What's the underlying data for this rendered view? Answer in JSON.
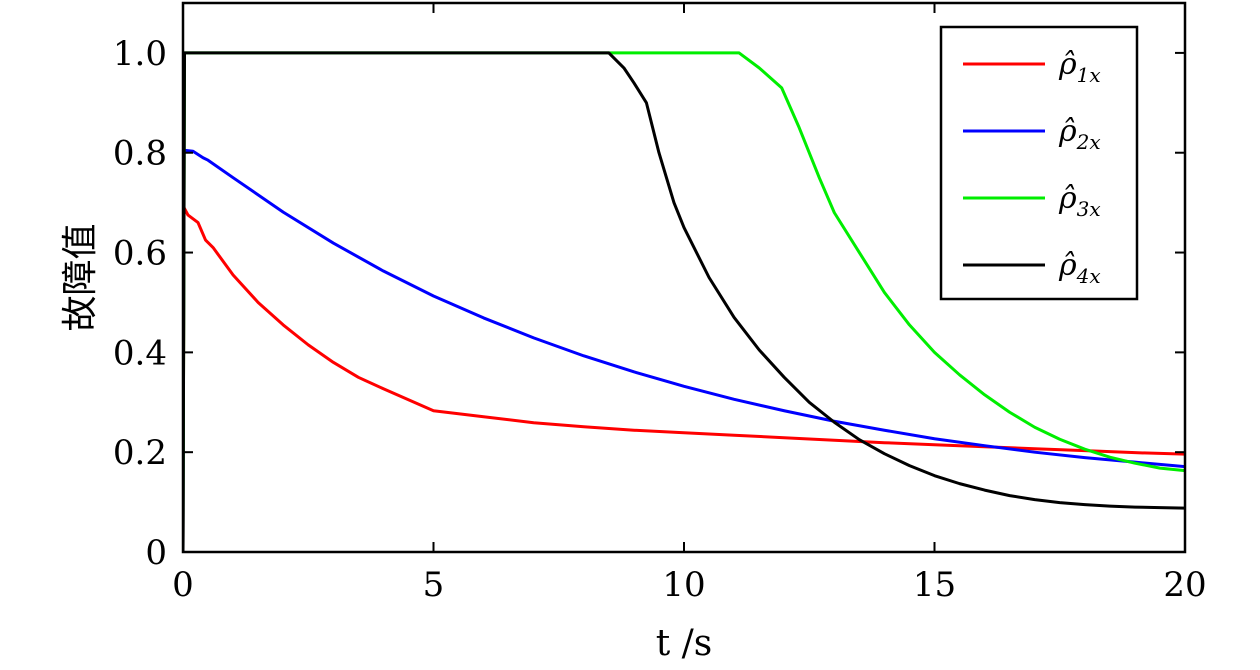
{
  "chart_data": {
    "type": "line",
    "title": "",
    "xlabel": "t /s",
    "ylabel": "故障值",
    "xlim": [
      0,
      20
    ],
    "ylim": [
      0,
      1.1
    ],
    "xticks": [
      0,
      5,
      10,
      15,
      20
    ],
    "yticks": [
      0,
      0.2,
      0.4,
      0.6,
      0.8,
      1.0
    ],
    "xtick_labels": [
      "0",
      "5",
      "10",
      "15",
      "20"
    ],
    "ytick_labels": [
      "0",
      "0.2",
      "0.4",
      "0.6",
      "0.8",
      "1.0"
    ],
    "grid": false,
    "legend_position": "top-right",
    "series": [
      {
        "name": "ρ̂1x",
        "color": "#ff0000",
        "points": [
          [
            0,
            0
          ],
          [
            0.02,
            0.69
          ],
          [
            0.1,
            0.675
          ],
          [
            0.3,
            0.66
          ],
          [
            0.45,
            0.625
          ],
          [
            0.6,
            0.61
          ],
          [
            1.0,
            0.555
          ],
          [
            1.5,
            0.5
          ],
          [
            2.0,
            0.455
          ],
          [
            2.5,
            0.415
          ],
          [
            3.0,
            0.38
          ],
          [
            3.5,
            0.35
          ],
          [
            4.0,
            0.327
          ],
          [
            4.5,
            0.305
          ],
          [
            5.0,
            0.283
          ],
          [
            6.0,
            0.271
          ],
          [
            7.0,
            0.259
          ],
          [
            8.0,
            0.251
          ],
          [
            9.0,
            0.244
          ],
          [
            10.0,
            0.239
          ],
          [
            11.0,
            0.234
          ],
          [
            12.0,
            0.229
          ],
          [
            13.0,
            0.224
          ],
          [
            14.0,
            0.219
          ],
          [
            15.0,
            0.215
          ],
          [
            16.0,
            0.211
          ],
          [
            17.0,
            0.207
          ],
          [
            18.0,
            0.203
          ],
          [
            19.0,
            0.199
          ],
          [
            20.0,
            0.196
          ]
        ]
      },
      {
        "name": "ρ̂2x",
        "color": "#0000ff",
        "points": [
          [
            0,
            0
          ],
          [
            0.02,
            0.805
          ],
          [
            0.2,
            0.803
          ],
          [
            0.4,
            0.79
          ],
          [
            0.5,
            0.785
          ],
          [
            1.0,
            0.75
          ],
          [
            2.0,
            0.681
          ],
          [
            3.0,
            0.619
          ],
          [
            4.0,
            0.563
          ],
          [
            5.0,
            0.513
          ],
          [
            6.0,
            0.469
          ],
          [
            7.0,
            0.429
          ],
          [
            8.0,
            0.393
          ],
          [
            9.0,
            0.361
          ],
          [
            10.0,
            0.332
          ],
          [
            11.0,
            0.306
          ],
          [
            12.0,
            0.283
          ],
          [
            13.0,
            0.262
          ],
          [
            14.0,
            0.244
          ],
          [
            15.0,
            0.227
          ],
          [
            16.0,
            0.213
          ],
          [
            17.0,
            0.2
          ],
          [
            18.0,
            0.189
          ],
          [
            19.0,
            0.18
          ],
          [
            20.0,
            0.171
          ]
        ]
      },
      {
        "name": "ρ̂3x",
        "color": "#00ee00",
        "points": [
          [
            0,
            0
          ],
          [
            0.03,
            1.0
          ],
          [
            11.1,
            1.0
          ],
          [
            11.5,
            0.97
          ],
          [
            11.95,
            0.93
          ],
          [
            12.3,
            0.85
          ],
          [
            12.7,
            0.75
          ],
          [
            13.0,
            0.68
          ],
          [
            13.5,
            0.6
          ],
          [
            14.0,
            0.52
          ],
          [
            14.5,
            0.455
          ],
          [
            15.0,
            0.4
          ],
          [
            15.5,
            0.355
          ],
          [
            16.0,
            0.315
          ],
          [
            16.5,
            0.28
          ],
          [
            17.0,
            0.25
          ],
          [
            17.5,
            0.226
          ],
          [
            18.0,
            0.206
          ],
          [
            18.5,
            0.19
          ],
          [
            19.0,
            0.178
          ],
          [
            19.5,
            0.168
          ],
          [
            20.0,
            0.163
          ]
        ]
      },
      {
        "name": "ρ̂4x",
        "color": "#000000",
        "points": [
          [
            0,
            0
          ],
          [
            0.03,
            1.0
          ],
          [
            8.5,
            1.0
          ],
          [
            8.8,
            0.97
          ],
          [
            9.0,
            0.94
          ],
          [
            9.25,
            0.9
          ],
          [
            9.5,
            0.8
          ],
          [
            9.8,
            0.7
          ],
          [
            10.0,
            0.65
          ],
          [
            10.5,
            0.55
          ],
          [
            11.0,
            0.47
          ],
          [
            11.5,
            0.405
          ],
          [
            12.0,
            0.35
          ],
          [
            12.5,
            0.3
          ],
          [
            13.0,
            0.26
          ],
          [
            13.5,
            0.225
          ],
          [
            14.0,
            0.197
          ],
          [
            14.5,
            0.173
          ],
          [
            15.0,
            0.153
          ],
          [
            15.5,
            0.137
          ],
          [
            16.0,
            0.124
          ],
          [
            16.5,
            0.113
          ],
          [
            17.0,
            0.105
          ],
          [
            17.5,
            0.099
          ],
          [
            18.0,
            0.095
          ],
          [
            18.5,
            0.092
          ],
          [
            19.0,
            0.09
          ],
          [
            19.5,
            0.089
          ],
          [
            20.0,
            0.088
          ]
        ]
      }
    ],
    "legend": [
      {
        "symbol": "ρ̂",
        "sub": "1x"
      },
      {
        "symbol": "ρ̂",
        "sub": "2x"
      },
      {
        "symbol": "ρ̂",
        "sub": "3x"
      },
      {
        "symbol": "ρ̂",
        "sub": "4x"
      }
    ]
  }
}
